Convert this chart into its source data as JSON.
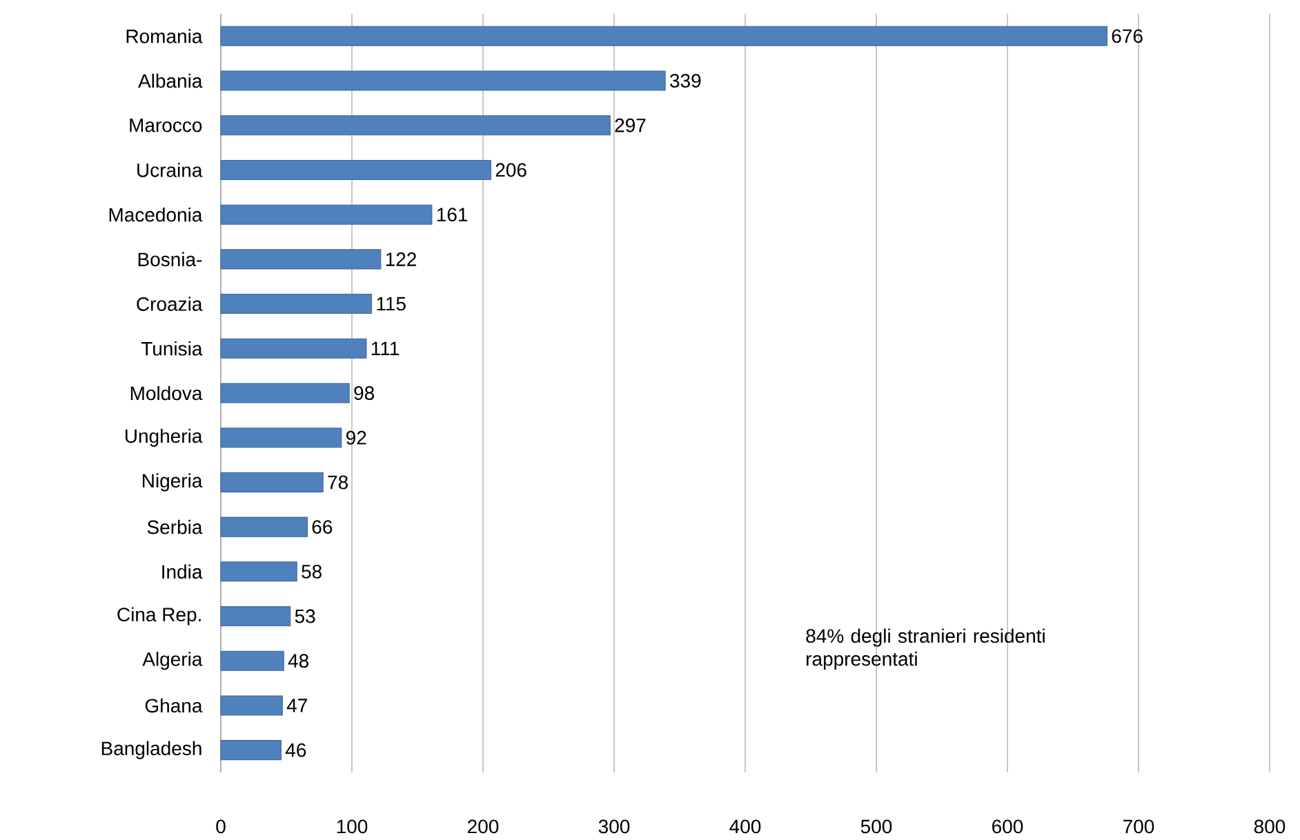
{
  "chart_data": {
    "type": "bar",
    "orientation": "horizontal",
    "categories": [
      "Romania",
      "Albania",
      "Marocco",
      "Ucraina",
      "Macedonia",
      "Bosnia-",
      "Croazia",
      "Tunisia",
      "Moldova",
      "Ungheria",
      "Nigeria",
      "Serbia",
      "India",
      "Cina Rep.",
      "Algeria",
      "Ghana",
      "Bangladesh"
    ],
    "values": [
      676,
      339,
      297,
      206,
      161,
      122,
      115,
      111,
      98,
      92,
      78,
      66,
      58,
      53,
      48,
      47,
      46
    ],
    "color": "#4f81bd",
    "xlim": [
      0,
      800
    ],
    "xticks": [
      0,
      100,
      200,
      300,
      400,
      500,
      600,
      700,
      800
    ],
    "grid": "x",
    "data_labels": true,
    "annotations": [
      "84% degli stranieri residenti rappresentati"
    ]
  }
}
